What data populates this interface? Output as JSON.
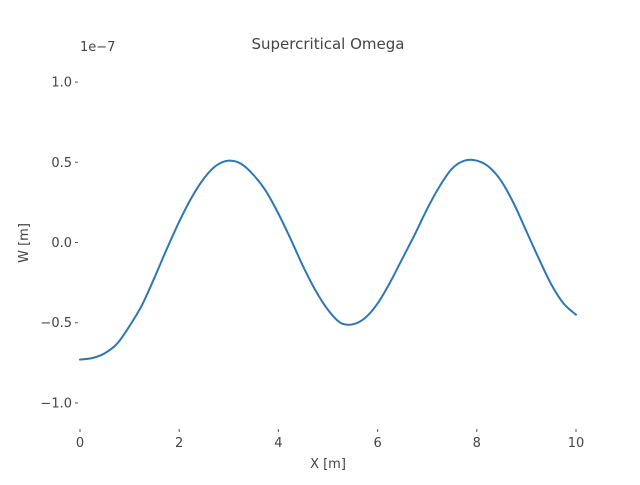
{
  "chart_data": {
    "type": "line",
    "title": "Supercritical Omega",
    "xlabel": "X [m]",
    "ylabel": "W [m]",
    "y_offset_text": "1e−7",
    "xlim": [
      0,
      10
    ],
    "ylim": [
      -1.15,
      1.15
    ],
    "grid": false,
    "x_ticks": [
      0,
      2,
      4,
      6,
      8,
      10
    ],
    "x_tick_labels": [
      "0",
      "2",
      "4",
      "6",
      "8",
      "10"
    ],
    "y_ticks": [
      1.0,
      0.5,
      0.0,
      -0.5,
      -1.0
    ],
    "y_tick_labels": [
      "1.0",
      "0.5",
      "0.0",
      "−0.5",
      "−1.0"
    ],
    "line_color": "#2e77b4",
    "series": [
      {
        "x": [
          0,
          0.25,
          0.5,
          0.75,
          1.0,
          1.25,
          1.5,
          1.75,
          2.0,
          2.25,
          2.5,
          2.75,
          3.0,
          3.25,
          3.5,
          3.75,
          4.0,
          4.25,
          4.5,
          4.75,
          5.0,
          5.25,
          5.5,
          5.75,
          6.0,
          6.25,
          6.5,
          6.75,
          7.0,
          7.25,
          7.5,
          7.75,
          8.0,
          8.25,
          8.5,
          8.75,
          9.0,
          9.25,
          9.5,
          9.75,
          10.0
        ],
        "y": [
          -0.73,
          -0.72,
          -0.69,
          -0.63,
          -0.52,
          -0.39,
          -0.22,
          -0.04,
          0.13,
          0.28,
          0.4,
          0.48,
          0.51,
          0.49,
          0.42,
          0.32,
          0.18,
          0.02,
          -0.15,
          -0.3,
          -0.42,
          -0.5,
          -0.51,
          -0.47,
          -0.38,
          -0.25,
          -0.1,
          0.05,
          0.21,
          0.35,
          0.46,
          0.51,
          0.51,
          0.47,
          0.38,
          0.24,
          0.07,
          -0.1,
          -0.26,
          -0.38,
          -0.45
        ]
      }
    ]
  }
}
